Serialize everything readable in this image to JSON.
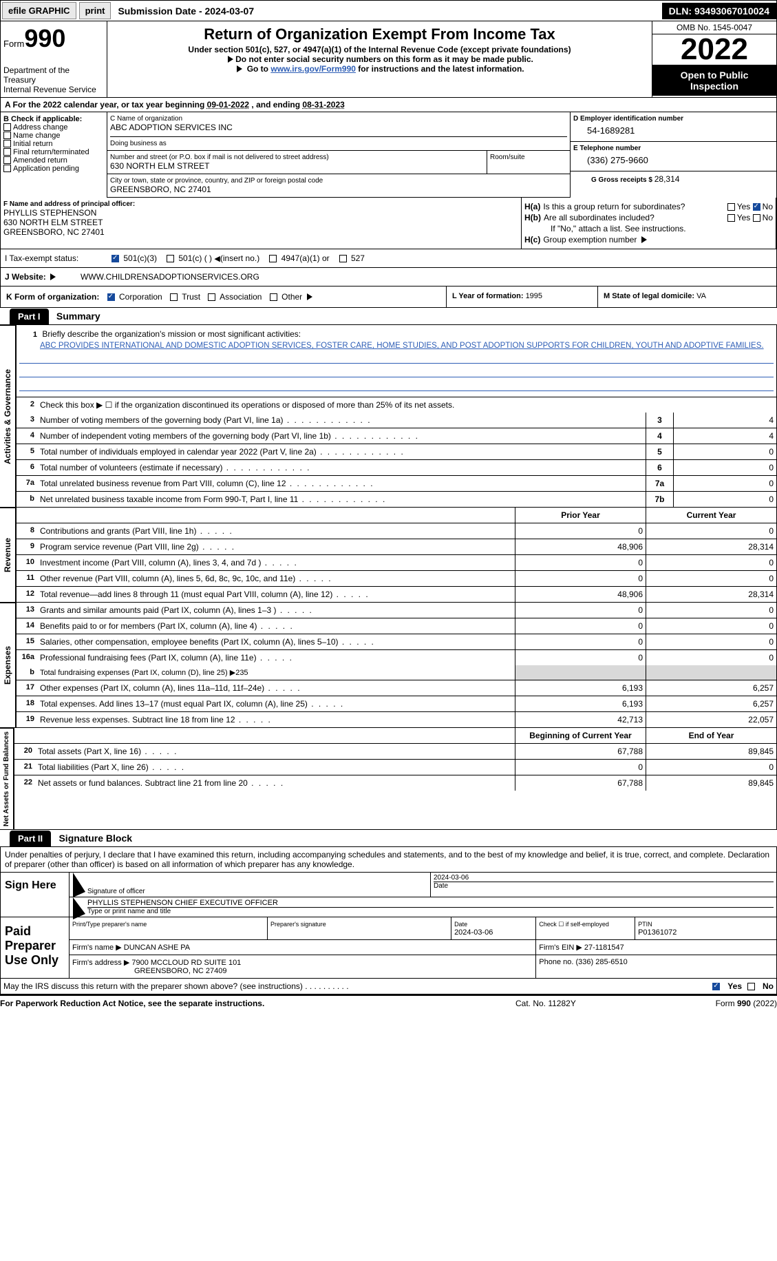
{
  "topbar": {
    "efile": "efile GRAPHIC",
    "print": "print",
    "submission_label": "Submission Date - 2024-03-07",
    "dln": "DLN: 93493067010024"
  },
  "header": {
    "form_word": "Form",
    "form_num": "990",
    "dept1": "Department of the Treasury",
    "dept2": "Internal Revenue Service",
    "title": "Return of Organization Exempt From Income Tax",
    "subtitle": "Under section 501(c), 527, or 4947(a)(1) of the Internal Revenue Code (except private foundations)",
    "hint1": "Do not enter social security numbers on this form as it may be made public.",
    "hint2a": "Go to ",
    "hint2_link": "www.irs.gov/Form990",
    "hint2b": " for instructions and the latest information.",
    "omb": "OMB No. 1545-0047",
    "year": "2022",
    "open": "Open to Public Inspection"
  },
  "rowA": {
    "prefix": "A For the 2022 calendar year, or tax year beginning ",
    "beg": "09-01-2022",
    "mid": "   , and ending ",
    "end": "08-31-2023"
  },
  "colB": {
    "title": "B Check if applicable:",
    "items": [
      "Address change",
      "Name change",
      "Initial return",
      "Final return/terminated",
      "Amended return",
      "Application pending"
    ]
  },
  "colC": {
    "name_lbl": "C Name of organization",
    "name_val": "ABC ADOPTION SERVICES INC",
    "dba_lbl": "Doing business as",
    "dba_val": "",
    "addr_lbl": "Number and street (or P.O. box if mail is not delivered to street address)",
    "addr_val": "630 NORTH ELM STREET",
    "room_lbl": "Room/suite",
    "room_val": "",
    "city_lbl": "City or town, state or province, country, and ZIP or foreign postal code",
    "city_val": "GREENSBORO, NC  27401"
  },
  "colD": {
    "ein_lbl": "D Employer identification number",
    "ein_val": "54-1689281",
    "tel_lbl": "E Telephone number",
    "tel_val": "(336) 275-9660",
    "gross_lbl": "G Gross receipts $ ",
    "gross_val": "28,314"
  },
  "officer": {
    "lbl": "F Name and address of principal officer:",
    "name": "PHYLLIS STEPHENSON",
    "addr1": "630 NORTH ELM STREET",
    "addr2": "GREENSBORO, NC  27401"
  },
  "h": {
    "ha_lbl": "H(a)",
    "ha_q": "Is this a group return for subordinates?",
    "hb_lbl": "H(b)",
    "hb_q": "Are all subordinates included?",
    "hb_note": "If \"No,\" attach a list. See instructions.",
    "hc_lbl": "H(c)",
    "hc_q": "Group exemption number ",
    "yes": "Yes",
    "no": "No"
  },
  "taxrow": {
    "lbl": "I   Tax-exempt status:",
    "o1": "501(c)(3)",
    "o2": "501(c) (  )",
    "o2b": "(insert no.)",
    "o3": "4947(a)(1) or",
    "o4": "527"
  },
  "web": {
    "lbl": "J  Website: ",
    "val": "WWW.CHILDRENSADOPTIONSERVICES.ORG"
  },
  "klm": {
    "k_lbl": "K Form of organization:",
    "k_opts": [
      "Corporation",
      "Trust",
      "Association",
      "Other"
    ],
    "l_lbl": "L Year of formation: ",
    "l_val": "1995",
    "m_lbl": "M State of legal domicile: ",
    "m_val": "VA"
  },
  "part1": {
    "hdr": "Part I",
    "title": "Summary",
    "vtab1": "Activities & Governance",
    "vtab2": "Revenue",
    "vtab3": "Expenses",
    "vtab4": "Net Assets or Fund Balances",
    "q1_lbl": "1",
    "q1": "Briefly describe the organization's mission or most significant activities:",
    "q1_val": "ABC PROVIDES INTERNATIONAL AND DOMESTIC ADOPTION SERVICES, FOSTER CARE, HOME STUDIES, AND POST ADOPTION SUPPORTS FOR CHILDREN, YOUTH AND ADOPTIVE FAMILIES.",
    "q2_lbl": "2",
    "q2": "Check this box ▶ ☐ if the organization discontinued its operations or disposed of more than 25% of its net assets.",
    "lines": [
      {
        "n": "3",
        "d": "Number of voting members of the governing body (Part VI, line 1a)",
        "k": "3",
        "v": "4"
      },
      {
        "n": "4",
        "d": "Number of independent voting members of the governing body (Part VI, line 1b)",
        "k": "4",
        "v": "4"
      },
      {
        "n": "5",
        "d": "Total number of individuals employed in calendar year 2022 (Part V, line 2a)",
        "k": "5",
        "v": "0"
      },
      {
        "n": "6",
        "d": "Total number of volunteers (estimate if necessary)",
        "k": "6",
        "v": "0"
      },
      {
        "n": "7a",
        "d": "Total unrelated business revenue from Part VIII, column (C), line 12",
        "k": "7a",
        "v": "0"
      },
      {
        "n": "b",
        "d": "Net unrelated business taxable income from Form 990-T, Part I, line 11",
        "k": "7b",
        "v": "0"
      }
    ],
    "col_prior": "Prior Year",
    "col_curr": "Current Year",
    "rev": [
      {
        "n": "8",
        "d": "Contributions and grants (Part VIII, line 1h)",
        "p": "0",
        "c": "0"
      },
      {
        "n": "9",
        "d": "Program service revenue (Part VIII, line 2g)",
        "p": "48,906",
        "c": "28,314"
      },
      {
        "n": "10",
        "d": "Investment income (Part VIII, column (A), lines 3, 4, and 7d )",
        "p": "0",
        "c": "0"
      },
      {
        "n": "11",
        "d": "Other revenue (Part VIII, column (A), lines 5, 6d, 8c, 9c, 10c, and 11e)",
        "p": "0",
        "c": "0"
      },
      {
        "n": "12",
        "d": "Total revenue—add lines 8 through 11 (must equal Part VIII, column (A), line 12)",
        "p": "48,906",
        "c": "28,314"
      }
    ],
    "exp": [
      {
        "n": "13",
        "d": "Grants and similar amounts paid (Part IX, column (A), lines 1–3 )",
        "p": "0",
        "c": "0"
      },
      {
        "n": "14",
        "d": "Benefits paid to or for members (Part IX, column (A), line 4)",
        "p": "0",
        "c": "0"
      },
      {
        "n": "15",
        "d": "Salaries, other compensation, employee benefits (Part IX, column (A), lines 5–10)",
        "p": "0",
        "c": "0"
      },
      {
        "n": "16a",
        "d": "Professional fundraising fees (Part IX, column (A), line 11e)",
        "p": "0",
        "c": "0"
      }
    ],
    "exp_b_n": "b",
    "exp_b_d": "Total fundraising expenses (Part IX, column (D), line 25) ▶235",
    "exp2": [
      {
        "n": "17",
        "d": "Other expenses (Part IX, column (A), lines 11a–11d, 11f–24e)",
        "p": "6,193",
        "c": "6,257"
      },
      {
        "n": "18",
        "d": "Total expenses. Add lines 13–17 (must equal Part IX, column (A), line 25)",
        "p": "6,193",
        "c": "6,257"
      },
      {
        "n": "19",
        "d": "Revenue less expenses. Subtract line 18 from line 12",
        "p": "42,713",
        "c": "22,057"
      }
    ],
    "col_beg": "Beginning of Current Year",
    "col_end": "End of Year",
    "net": [
      {
        "n": "20",
        "d": "Total assets (Part X, line 16)",
        "p": "67,788",
        "c": "89,845"
      },
      {
        "n": "21",
        "d": "Total liabilities (Part X, line 26)",
        "p": "0",
        "c": "0"
      },
      {
        "n": "22",
        "d": "Net assets or fund balances. Subtract line 21 from line 20",
        "p": "67,788",
        "c": "89,845"
      }
    ]
  },
  "part2": {
    "hdr": "Part II",
    "title": "Signature Block",
    "decl": "Under penalties of perjury, I declare that I have examined this return, including accompanying schedules and statements, and to the best of my knowledge and belief, it is true, correct, and complete. Declaration of preparer (other than officer) is based on all information of which preparer has any knowledge.",
    "sign_here": "Sign Here",
    "sig_of_officer": "Signature of officer",
    "sig_date": "2024-03-06",
    "date_lbl": "Date",
    "officer_nt": "PHYLLIS STEPHENSON  CHIEF EXECUTIVE OFFICER",
    "officer_nt_lbl": "Type or print name and title",
    "paid": "Paid Preparer Use Only",
    "pp_name_lbl": "Print/Type preparer's name",
    "pp_name": "",
    "pp_sig_lbl": "Preparer's signature",
    "pp_date_lbl": "Date",
    "pp_date": "2024-03-06",
    "pp_check_lbl": "Check ☐ if self-employed",
    "ptin_lbl": "PTIN",
    "ptin": "P01361072",
    "firm_name_lbl": "Firm's name   ▶",
    "firm_name": "DUNCAN ASHE PA",
    "firm_ein_lbl": "Firm's EIN ▶",
    "firm_ein": "27-1181547",
    "firm_addr_lbl": "Firm's address ▶",
    "firm_addr1": "7900 MCCLOUD RD SUITE 101",
    "firm_addr2": "GREENSBORO, NC  27409",
    "firm_phone_lbl": "Phone no. ",
    "firm_phone": "(336) 285-6510",
    "discuss": "May the IRS discuss this return with the preparer shown above? (see instructions)",
    "yes": "Yes",
    "no": "No"
  },
  "footer": {
    "left": "For Paperwork Reduction Act Notice, see the separate instructions.",
    "mid": "Cat. No. 11282Y",
    "right": "Form 990 (2022)"
  }
}
